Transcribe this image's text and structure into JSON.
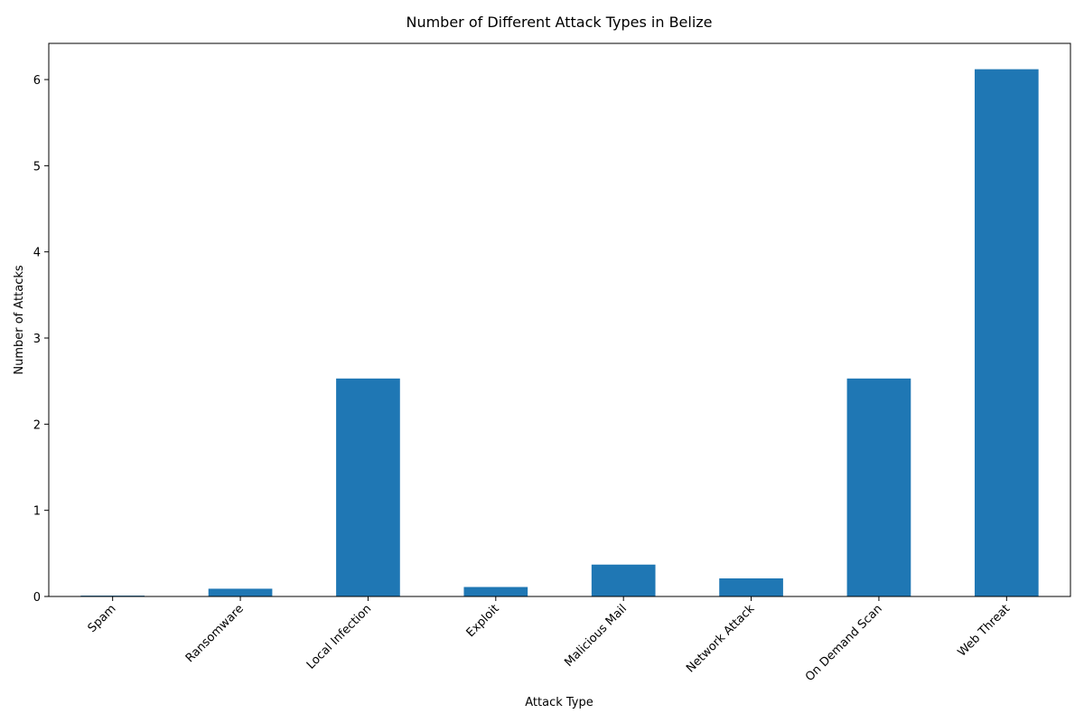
{
  "chart_data": {
    "type": "bar",
    "title": "Number of Different Attack Types in Belize",
    "xlabel": "Attack Type",
    "ylabel": "Number of Attacks",
    "categories": [
      "Spam",
      "Ransomware",
      "Local Infection",
      "Exploit",
      "Malicious Mail",
      "Network Attack",
      "On Demand Scan",
      "Web Threat"
    ],
    "values": [
      0.01,
      0.09,
      2.53,
      0.11,
      0.37,
      0.21,
      2.53,
      6.12
    ],
    "ylim": [
      0,
      6.42
    ],
    "yticks": [
      0,
      1,
      2,
      3,
      4,
      5,
      6
    ],
    "grid": false,
    "legend": "none",
    "bar_color": "#1f77b4",
    "x_tick_rotation_deg": 45
  }
}
